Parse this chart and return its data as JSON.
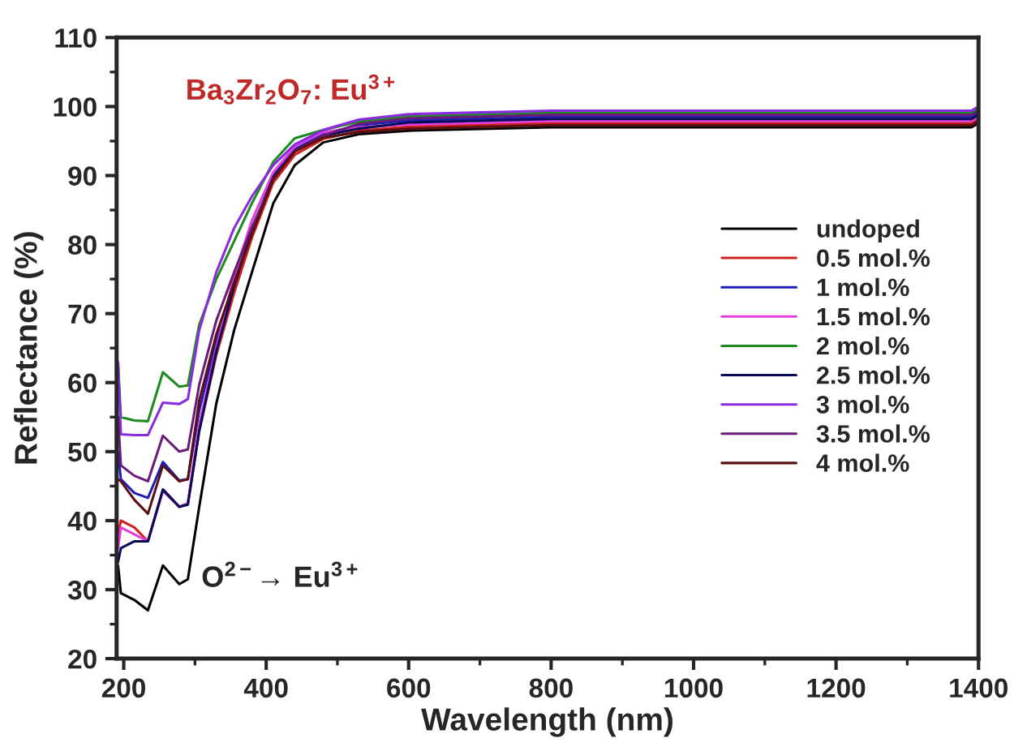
{
  "chart_data": {
    "type": "line",
    "xlabel": "Wavelength (nm)",
    "ylabel": "Reflectance (%)",
    "x": [
      192,
      196,
      215,
      234,
      255,
      278,
      290,
      306,
      330,
      355,
      380,
      410,
      440,
      480,
      530,
      600,
      800,
      1000,
      1200,
      1390,
      1400
    ],
    "series": [
      {
        "name": "undoped",
        "color": "#000000",
        "values": [
          33.5,
          29.5,
          28.5,
          27,
          33.5,
          30.8,
          31.5,
          42,
          57,
          67.6,
          76,
          86,
          91.5,
          94.8,
          96.0,
          96.5,
          97.0,
          97.0,
          97.0,
          97.0,
          97.6
        ]
      },
      {
        "name": "0.5 mol.%",
        "color": "#d02020",
        "values": [
          38,
          40,
          39,
          37,
          44.5,
          42,
          42.5,
          53,
          64,
          73,
          81,
          89,
          93,
          95.3,
          96.5,
          97.1,
          97.6,
          97.6,
          97.6,
          97.6,
          98.2
        ]
      },
      {
        "name": "1 mol.%",
        "color": "#1f1fb4",
        "values": [
          50,
          46,
          44,
          43.3,
          48.5,
          45.8,
          46,
          56,
          66,
          74.5,
          82,
          90,
          93.8,
          96,
          97.3,
          98.0,
          98.5,
          98.5,
          98.5,
          98.5,
          99.1
        ]
      },
      {
        "name": "1.5 mol.%",
        "color": "#e040e0",
        "values": [
          36,
          39,
          38,
          37,
          44.3,
          42,
          42.5,
          54,
          65,
          75.5,
          83.5,
          90.5,
          94.2,
          96.3,
          97.0,
          97.4,
          97.9,
          97.9,
          97.9,
          97.9,
          98.5
        ]
      },
      {
        "name": "2 mol.%",
        "color": "#1f8a1f",
        "values": [
          63,
          55,
          54.5,
          54.4,
          61.5,
          59.4,
          59.6,
          68.4,
          75,
          80.5,
          86,
          92,
          95.4,
          96.6,
          97.8,
          98.6,
          99.1,
          99.1,
          99.1,
          99.1,
          99.7
        ]
      },
      {
        "name": "2.5 mol.%",
        "color": "#0a0a5a",
        "values": [
          34,
          36,
          37,
          37,
          44.5,
          42,
          42.3,
          53,
          64.5,
          74,
          82,
          89.8,
          93.5,
          95.8,
          96.8,
          97.7,
          98.2,
          98.2,
          98.2,
          98.2,
          98.8
        ]
      },
      {
        "name": "3 mol.%",
        "color": "#8a2be2",
        "values": [
          63,
          52.5,
          52.4,
          52.4,
          57.1,
          56.9,
          57.6,
          67.6,
          76,
          82.4,
          87,
          91.5,
          94.5,
          96.6,
          98.1,
          98.9,
          99.4,
          99.4,
          99.4,
          99.4,
          100
        ]
      },
      {
        "name": "3.5 mol.%",
        "color": "#6a1b7a",
        "values": [
          55,
          48,
          46.5,
          45.7,
          52.3,
          50,
          50.3,
          59.7,
          69,
          76,
          82.5,
          89.5,
          93.5,
          95.8,
          97.5,
          98.3,
          98.8,
          98.8,
          98.8,
          98.8,
          99.4
        ]
      },
      {
        "name": "4 mol.%",
        "color": "#5a1010",
        "values": [
          46,
          45.7,
          43,
          41,
          48,
          45.7,
          46,
          57.4,
          67,
          74.5,
          81.5,
          89.5,
          93.5,
          95.5,
          96.3,
          96.8,
          97.3,
          97.3,
          97.3,
          97.3,
          97.9
        ]
      }
    ],
    "xlim": [
      190,
      1400
    ],
    "ylim": [
      20,
      110
    ],
    "xticks": [
      200,
      400,
      600,
      800,
      1000,
      1200,
      1400
    ],
    "yticks": [
      20,
      30,
      40,
      50,
      60,
      70,
      80,
      90,
      100,
      110
    ],
    "legend": "right",
    "grid": false,
    "marker": "none",
    "line_style": "solid",
    "annotations": [
      "Ba$_{3}$Zr$_{2}$O$_{7}$: Eu$^{3+}$",
      {
        "text": "O$^{2−}$→ Eu$^{3+}$",
        "x": 290,
        "y": 31.5
      }
    ]
  }
}
